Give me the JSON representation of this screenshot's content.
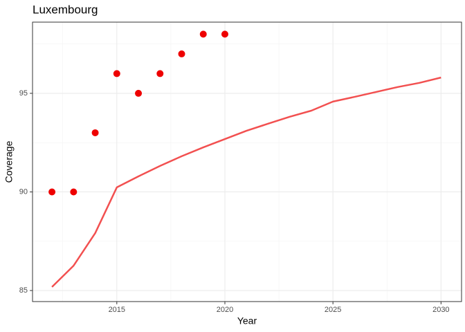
{
  "chart_data": {
    "type": "scatter-line",
    "title": "Luxembourg",
    "x_label": "Year",
    "y_label": "Coverage",
    "xlim": [
      2011.1,
      2030.95
    ],
    "xticks": [
      2015,
      2020,
      2025,
      2030
    ],
    "ylim": [
      84.44,
      98.61
    ],
    "yticks": [
      85,
      90,
      95
    ],
    "grid": true,
    "series": [
      {
        "kind": "points",
        "color": "#ee0000",
        "x": [
          2012,
          2013,
          2014,
          2015,
          2016,
          2017,
          2018,
          2019,
          2020
        ],
        "values": [
          90,
          90,
          93,
          96,
          95,
          96,
          97,
          98,
          98
        ]
      },
      {
        "kind": "line",
        "color": "#f25050",
        "x": [
          2012,
          2013,
          2014,
          2015,
          2016,
          2017,
          2018,
          2019,
          2020,
          2021,
          2022,
          2023,
          2024,
          2025,
          2026,
          2027,
          2028,
          2029,
          2030
        ],
        "values": [
          85.18,
          86.26,
          87.91,
          90.23,
          90.79,
          91.32,
          91.81,
          92.26,
          92.68,
          93.1,
          93.46,
          93.81,
          94.12,
          94.58,
          94.82,
          95.07,
          95.32,
          95.53,
          95.8
        ]
      }
    ]
  }
}
